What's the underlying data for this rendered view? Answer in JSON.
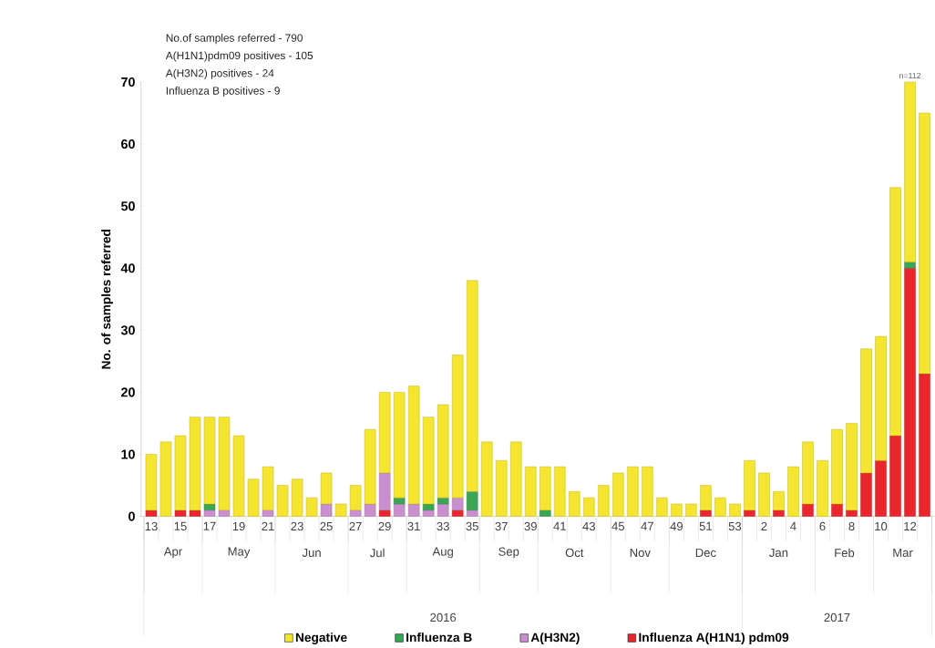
{
  "chart_data": {
    "type": "bar",
    "stacked": true,
    "ylabel": "No. of samples referred",
    "categories": [
      "13",
      null,
      "15",
      null,
      "17",
      null,
      "19",
      null,
      "21",
      null,
      "23",
      null,
      "25",
      null,
      "27",
      null,
      "29",
      null,
      "31",
      null,
      "33",
      null,
      "35",
      null,
      "37",
      null,
      "39",
      null,
      "41",
      null,
      "43",
      null,
      "45",
      null,
      "47",
      null,
      "49",
      null,
      "51",
      null,
      "53",
      null,
      "2",
      null,
      "4",
      null,
      "6",
      null,
      "8",
      null,
      "10",
      null,
      "12",
      null
    ],
    "series": [
      {
        "name": "Influenza A(H1N1) pdm09",
        "color": "#e8262b",
        "values": [
          1,
          0,
          1,
          1,
          0,
          0,
          0,
          0,
          0,
          0,
          0,
          0,
          0,
          0,
          0,
          0,
          1,
          0,
          0,
          0,
          0,
          1,
          0,
          0,
          0,
          0,
          0,
          0,
          0,
          0,
          0,
          0,
          0,
          0,
          0,
          0,
          0,
          0,
          1,
          0,
          0,
          1,
          0,
          1,
          0,
          2,
          0,
          2,
          1,
          7,
          9,
          13,
          40,
          23
        ]
      },
      {
        "name": "A(H3N2)",
        "color": "#c98fcf",
        "values": [
          0,
          0,
          0,
          0,
          1,
          1,
          0,
          0,
          1,
          0,
          0,
          0,
          2,
          0,
          1,
          2,
          6,
          2,
          2,
          1,
          2,
          2,
          1,
          0,
          0,
          0,
          0,
          0,
          0,
          0,
          0,
          0,
          0,
          0,
          0,
          0,
          0,
          0,
          0,
          0,
          0,
          0,
          0,
          0,
          0,
          0,
          0,
          0,
          0,
          0,
          0,
          0,
          0,
          0
        ]
      },
      {
        "name": "Influenza  B",
        "color": "#3aa655",
        "values": [
          0,
          0,
          0,
          0,
          1,
          0,
          0,
          0,
          0,
          0,
          0,
          0,
          0,
          0,
          0,
          0,
          0,
          1,
          0,
          1,
          1,
          0,
          3,
          0,
          0,
          0,
          0,
          1,
          0,
          0,
          0,
          0,
          0,
          0,
          0,
          0,
          0,
          0,
          0,
          0,
          0,
          0,
          0,
          0,
          0,
          0,
          0,
          0,
          0,
          0,
          0,
          0,
          1,
          0
        ]
      },
      {
        "name": "Negative",
        "color": "#f5e52f",
        "values": [
          9,
          12,
          12,
          15,
          14,
          15,
          13,
          6,
          7,
          5,
          6,
          3,
          5,
          2,
          4,
          12,
          13,
          17,
          19,
          14,
          15,
          23,
          34,
          12,
          9,
          12,
          8,
          7,
          8,
          4,
          3,
          5,
          7,
          8,
          8,
          3,
          2,
          2,
          4,
          3,
          2,
          8,
          7,
          3,
          8,
          10,
          9,
          12,
          14,
          20,
          20,
          40,
          29,
          42
        ]
      }
    ],
    "ylim": [
      0,
      70
    ],
    "yticks": [
      0,
      10,
      20,
      30,
      40,
      50,
      60,
      70
    ],
    "legend": "bottom",
    "annotations": [
      "No.of samples referred -  790",
      "A(H1N1)pdm09 positives - 105",
      "A(H3N2) positives -  24",
      "Influenza B positives - 9",
      {
        "text": "n=112",
        "x": "12",
        "y": 70
      },
      "Apr",
      "May",
      "Jun",
      "Jul",
      "Aug",
      "Sep",
      "Oct",
      "Nov",
      "Dec",
      "Jan",
      "Feb",
      "Mar",
      "2016",
      "2017"
    ]
  }
}
